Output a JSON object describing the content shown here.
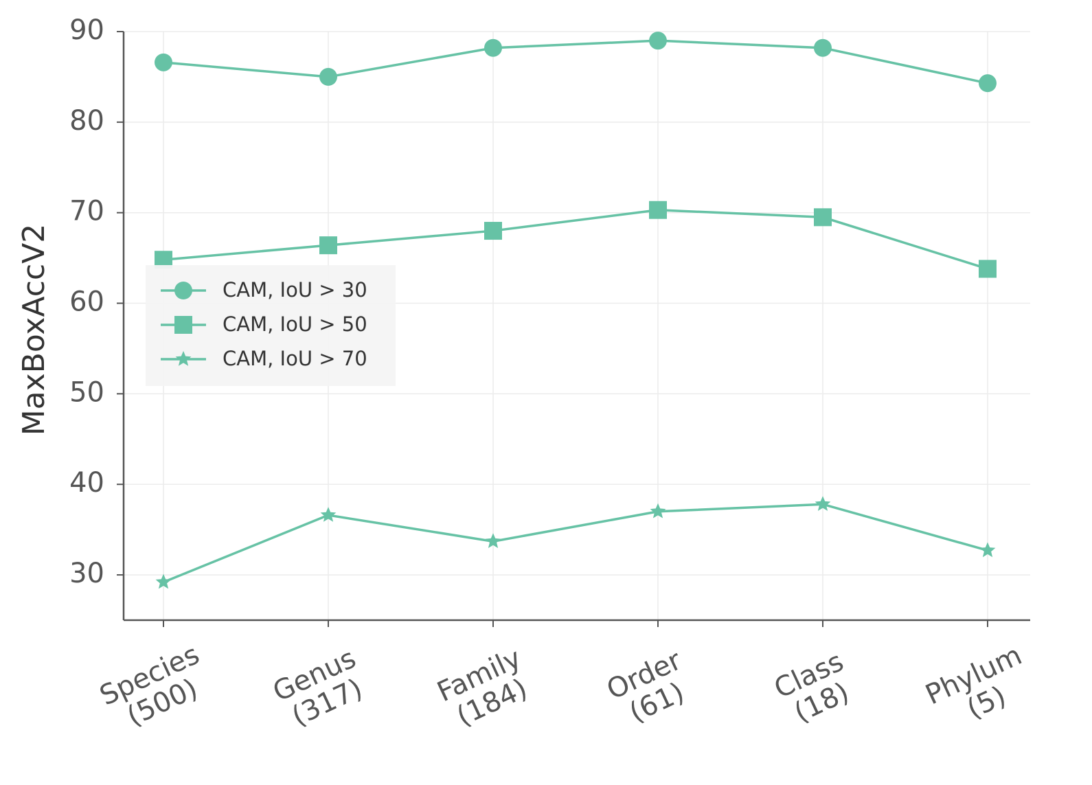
{
  "chart_data": {
    "type": "line",
    "ylabel": "MaxBoxAccV2",
    "categories": [
      "Species\n(500)",
      "Genus\n(317)",
      "Family\n(184)",
      "Order\n(61)",
      "Class\n(18)",
      "Phylum\n(5)"
    ],
    "series": [
      {
        "name": "CAM, IoU > 30",
        "color": "#66c2a5",
        "marker": "circle",
        "values": [
          86.6,
          85.0,
          88.2,
          89.0,
          88.2,
          84.3
        ]
      },
      {
        "name": "CAM, IoU > 50",
        "color": "#66c2a5",
        "marker": "square",
        "values": [
          64.8,
          66.4,
          68.0,
          70.3,
          69.5,
          63.8
        ]
      },
      {
        "name": "CAM, IoU > 70",
        "color": "#66c2a5",
        "marker": "star",
        "values": [
          29.2,
          36.6,
          33.7,
          37.0,
          37.8,
          32.7
        ]
      }
    ],
    "ylim": [
      25,
      90
    ],
    "yticks": [
      30,
      40,
      50,
      60,
      70,
      80,
      90
    ],
    "grid": true,
    "legend": "center left"
  }
}
